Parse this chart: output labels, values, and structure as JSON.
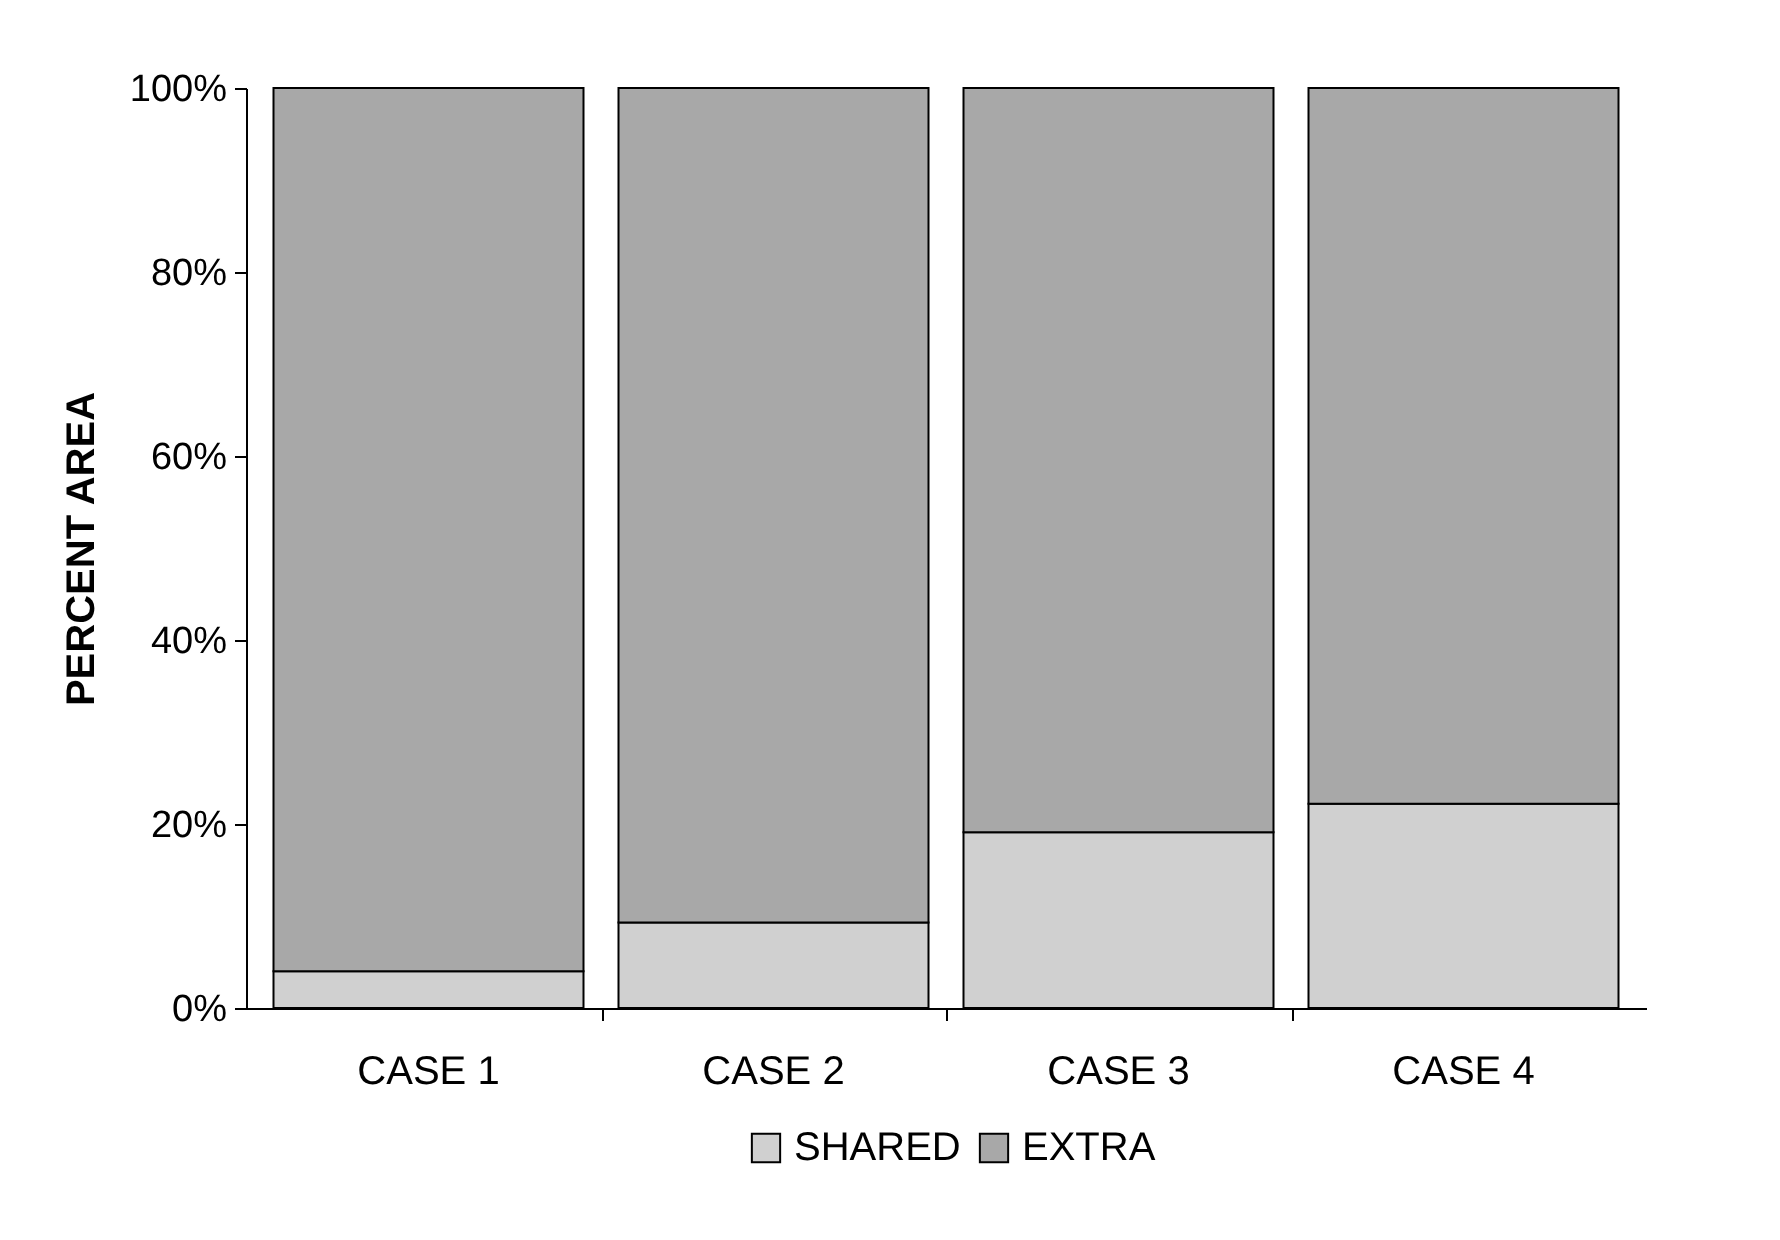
{
  "chart_data": {
    "type": "bar",
    "stacked": true,
    "ylabel": "PERCENT AREA",
    "categories": [
      "CASE 1",
      "CASE 2",
      "CASE 3",
      "CASE 4"
    ],
    "series": [
      {
        "name": "SHARED",
        "color": "#d0d0d0",
        "values": [
          4,
          9.3,
          19.1,
          22.2
        ]
      },
      {
        "name": "EXTRA",
        "color": "#a8a8a8",
        "values": [
          96,
          90.7,
          80.9,
          77.8
        ]
      }
    ],
    "ylim": [
      0,
      100
    ],
    "yticks": [
      {
        "value": 0,
        "label": "0%"
      },
      {
        "value": 20,
        "label": "20%"
      },
      {
        "value": 40,
        "label": "40%"
      },
      {
        "value": 60,
        "label": "60%"
      },
      {
        "value": 80,
        "label": "80%"
      },
      {
        "value": 100,
        "label": "100%"
      }
    ],
    "grid": false,
    "legend": "bottom"
  }
}
